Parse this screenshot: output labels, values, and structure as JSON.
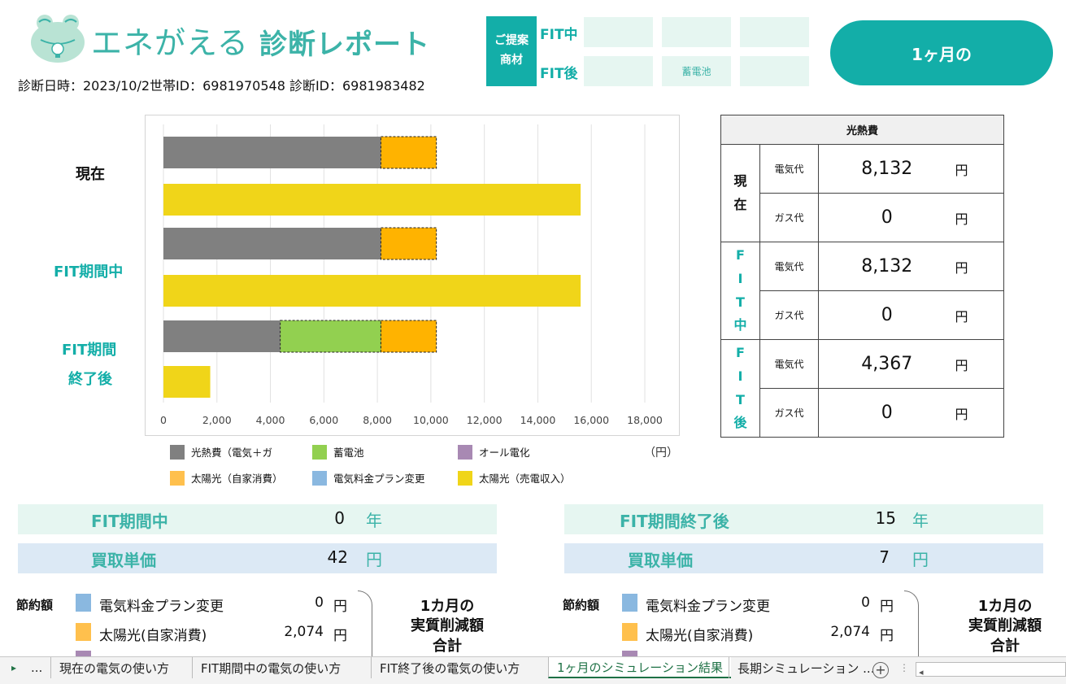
{
  "header": {
    "logo_text_light": "エネがえる",
    "logo_text_bold": "診断レポート",
    "meta_line": "診断日時：2023/10/2世帯ID：6981970548 診断ID：6981983482",
    "proposal_label_line1": "ご提案",
    "proposal_label_line2": "商材",
    "fit_during_label": "FIT中",
    "fit_after_label": "FIT後",
    "fit_after_item": "蓄電池",
    "period_button": "1ヶ月の"
  },
  "chart_data": {
    "type": "bar",
    "orientation": "horizontal-stacked",
    "xlim": [
      0,
      18000
    ],
    "x_ticks": [
      "0",
      "2,000",
      "4,000",
      "6,000",
      "8,000",
      "10,000",
      "12,000",
      "14,000",
      "16,000",
      "18,000"
    ],
    "unit_label": "（円）",
    "groups": [
      "現在",
      "FIT期間中",
      "FIT期間\n終了後"
    ],
    "group_label_parts": {
      "g3_line1": "FIT期間",
      "g3_line2": "終了後"
    },
    "bars": [
      {
        "group": 0,
        "segments": [
          {
            "series": "光熱費（電気＋ガ",
            "value": 8132
          },
          {
            "series": "太陽光（自家消費）",
            "value": 2074
          }
        ]
      },
      {
        "group": 0,
        "segments": [
          {
            "series": "太陽光（売電収入）",
            "value": 15600
          }
        ]
      },
      {
        "group": 1,
        "segments": [
          {
            "series": "光熱費（電気＋ガ",
            "value": 8132
          },
          {
            "series": "太陽光（自家消費）",
            "value": 2074
          }
        ]
      },
      {
        "group": 1,
        "segments": [
          {
            "series": "太陽光（売電収入）",
            "value": 15600
          }
        ]
      },
      {
        "group": 2,
        "segments": [
          {
            "series": "光熱費（電気＋ガ",
            "value": 4367
          },
          {
            "series": "蓄電池",
            "value": 3765
          },
          {
            "series": "太陽光（自家消費）",
            "value": 2074
          }
        ]
      },
      {
        "group": 2,
        "segments": [
          {
            "series": "太陽光（売電収入）",
            "value": 1750
          }
        ]
      }
    ],
    "legend": [
      {
        "name": "光熱費（電気＋ガ",
        "color": "#808080"
      },
      {
        "name": "蓄電池",
        "color": "#92d050"
      },
      {
        "name": "オール電化",
        "color": "#a889b3"
      },
      {
        "name": "太陽光（自家消費）",
        "color": "#ffb300"
      },
      {
        "name": "電気料金プラン変更",
        "color": "#8ab8e0"
      },
      {
        "name": "太陽光（売電収入）",
        "color": "#f0d519"
      }
    ],
    "legend_position": "bottom"
  },
  "cost_table": {
    "title": "光熱費",
    "groups": [
      {
        "label": "現\n在",
        "rows": [
          {
            "kind": "電気代",
            "value": "8,132",
            "unit": "円"
          },
          {
            "kind": "ガス代",
            "value": "0",
            "unit": "円"
          }
        ]
      },
      {
        "label": "F\nI\nT\n中",
        "rows": [
          {
            "kind": "電気代",
            "value": "8,132",
            "unit": "円"
          },
          {
            "kind": "ガス代",
            "value": "0",
            "unit": "円"
          }
        ]
      },
      {
        "label": "F\nI\nT\n後",
        "rows": [
          {
            "kind": "電気代",
            "value": "4,367",
            "unit": "円"
          },
          {
            "kind": "ガス代",
            "value": "0",
            "unit": "円"
          }
        ]
      }
    ]
  },
  "left_panel": {
    "period_label": "FIT期間中",
    "period_value": "0",
    "period_unit": "年",
    "price_label": "買取単価",
    "price_value": "42",
    "price_unit": "円",
    "savings_title": "節約額",
    "items": [
      {
        "name": "電気料金プラン変更",
        "value": "0",
        "unit": "円",
        "color": "#8ab8e0"
      },
      {
        "name": "太陽光(自家消費)",
        "value": "2,074",
        "unit": "円",
        "color": "#ffc04d"
      }
    ],
    "total_line1": "1カ月の",
    "total_line2": "実質削減額",
    "total_line3": "合計"
  },
  "right_panel": {
    "period_label": "FIT期間終了後",
    "period_value": "15",
    "period_unit": "年",
    "price_label": "買取単価",
    "price_value": "7",
    "price_unit": "円",
    "savings_title": "節約額",
    "items": [
      {
        "name": "電気料金プラン変更",
        "value": "0",
        "unit": "円",
        "color": "#8ab8e0"
      },
      {
        "name": "太陽光(自家消費)",
        "value": "2,074",
        "unit": "円",
        "color": "#ffc04d"
      }
    ],
    "total_line1": "1カ月の",
    "total_line2": "実質削減額",
    "total_line3": "合計"
  },
  "sheet_tabs": {
    "nav_prev": "▸",
    "ellipsis": "...",
    "tabs": [
      "現在の電気の使い方",
      "FIT期間中の電気の使い方",
      "FIT終了後の電気の使い方",
      "1ヶ月のシミュレーション結果",
      "長期シミュレーション ..."
    ],
    "active_index": 3,
    "add": "+",
    "more": "⋮",
    "scroll_left": "◂"
  }
}
